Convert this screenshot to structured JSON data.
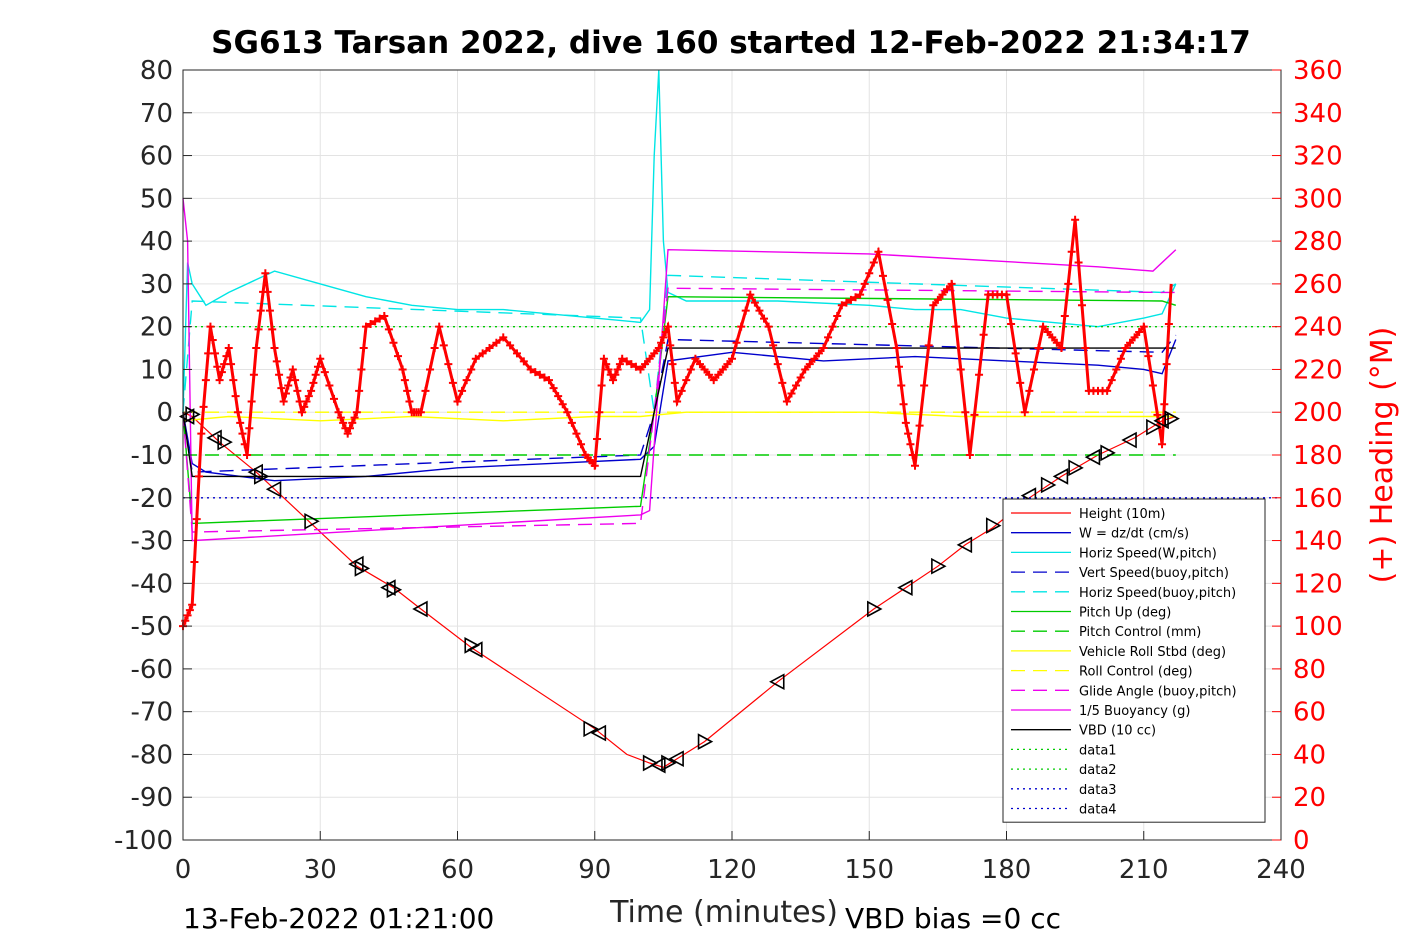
{
  "chart_data": {
    "type": "line",
    "title": "SG613 Tarsan 2022, dive 160 started 12-Feb-2022 21:34:17",
    "xlabel": "Time (minutes)",
    "ylabel_right": "(+) Heading (°M)",
    "footer_left": "13-Feb-2022 01:21:00",
    "footer_right": "VBD bias =0 cc",
    "xlim": [
      0,
      240
    ],
    "ylim": [
      -100,
      80
    ],
    "ylim_right": [
      0,
      360
    ],
    "x_ticks": [
      0,
      30,
      60,
      90,
      120,
      150,
      180,
      210,
      240
    ],
    "y_ticks": [
      80,
      70,
      60,
      50,
      40,
      30,
      20,
      10,
      0,
      -10,
      -20,
      -30,
      -40,
      -50,
      -60,
      -70,
      -80,
      -90,
      -100
    ],
    "y_ticks_right": [
      360,
      340,
      320,
      300,
      280,
      260,
      240,
      220,
      200,
      180,
      160,
      140,
      120,
      100,
      80,
      60,
      40,
      20,
      0
    ],
    "grid": true,
    "legend_position": "lower-right",
    "legend": [
      {
        "name": "Height (10m)",
        "color": "#ff0000",
        "dash": "solid"
      },
      {
        "name": "W = dz/dt (cm/s)",
        "color": "#0000cc",
        "dash": "solid"
      },
      {
        "name": "Horiz Speed(W,pitch)",
        "color": "#00e5e5",
        "dash": "solid"
      },
      {
        "name": "Vert Speed(buoy,pitch)",
        "color": "#0000cc",
        "dash": "dashed"
      },
      {
        "name": "Horiz Speed(buoy,pitch)",
        "color": "#00e5e5",
        "dash": "dashed"
      },
      {
        "name": "Pitch Up (deg)",
        "color": "#00cc00",
        "dash": "solid"
      },
      {
        "name": "Pitch Control (mm)",
        "color": "#00cc00",
        "dash": "dashed"
      },
      {
        "name": "Vehicle Roll Stbd (deg)",
        "color": "#ffff00",
        "dash": "solid"
      },
      {
        "name": "Roll Control (deg)",
        "color": "#ffff00",
        "dash": "dashed"
      },
      {
        "name": "Glide Angle (buoy,pitch)",
        "color": "#ee00ee",
        "dash": "dashed"
      },
      {
        "name": "1/5 Buoyancy (g)",
        "color": "#ee00ee",
        "dash": "solid"
      },
      {
        "name": "VBD (10 cc)",
        "color": "#000000",
        "dash": "solid"
      },
      {
        "name": "data1",
        "color": "#00cc00",
        "dash": "dotted"
      },
      {
        "name": "data2",
        "color": "#00cc00",
        "dash": "dotted"
      },
      {
        "name": "data3",
        "color": "#0000cc",
        "dash": "dotted"
      },
      {
        "name": "data4",
        "color": "#0000cc",
        "dash": "dotted"
      }
    ],
    "series": [
      {
        "key": "height",
        "x": [
          0,
          2,
          8,
          16,
          20,
          28,
          38,
          46,
          52,
          63,
          90,
          97,
          102,
          105,
          108,
          114,
          130,
          151,
          158,
          165,
          171,
          177,
          185,
          192,
          200,
          208,
          214,
          217
        ],
        "y": [
          0,
          -1,
          -7,
          -14,
          -18,
          -26,
          -36,
          -41,
          -46,
          -55,
          -74,
          -80,
          -82,
          -83,
          -81,
          -77,
          -63,
          -46,
          -41,
          -36,
          -31,
          -27,
          -20,
          -15,
          -10,
          -6,
          -2,
          -1
        ]
      },
      {
        "key": "w",
        "x": [
          0,
          2,
          5,
          20,
          40,
          60,
          80,
          100,
          103,
          106,
          120,
          140,
          160,
          180,
          200,
          210,
          214,
          217
        ],
        "y": [
          0,
          -12,
          -14,
          -16,
          -15,
          -13,
          -12,
          -11,
          -8,
          12,
          14,
          12,
          13,
          12,
          11,
          10,
          9,
          17
        ]
      },
      {
        "key": "horiz_w",
        "x": [
          0,
          1,
          2,
          5,
          10,
          20,
          30,
          40,
          50,
          60,
          70,
          80,
          90,
          100,
          102,
          103,
          104,
          105,
          106,
          110,
          130,
          150,
          160,
          170,
          180,
          190,
          200,
          210,
          214,
          217
        ],
        "y": [
          0,
          35,
          30,
          25,
          28,
          33,
          30,
          27,
          25,
          24,
          24,
          23,
          22,
          21,
          24,
          60,
          80,
          40,
          28,
          26,
          26,
          25,
          24,
          24,
          22,
          21,
          20,
          22,
          23,
          30
        ]
      },
      {
        "key": "vert_buoy",
        "x": [
          0,
          2,
          100,
          103,
          106,
          214,
          217
        ],
        "y": [
          0,
          -14,
          -10,
          0,
          17,
          14,
          18
        ]
      },
      {
        "key": "horiz_buoy",
        "x": [
          0,
          2,
          100,
          103,
          106,
          214,
          217
        ],
        "y": [
          0,
          26,
          22,
          0,
          32,
          28,
          30
        ]
      },
      {
        "key": "pitch_up",
        "x": [
          0,
          2,
          100,
          103,
          106,
          214,
          217
        ],
        "y": [
          0,
          -26,
          -22,
          0,
          27,
          26,
          25
        ]
      },
      {
        "key": "pitch_ctrl",
        "x": [
          0,
          217
        ],
        "y": [
          -10,
          -10
        ]
      },
      {
        "key": "roll",
        "x": [
          0,
          10,
          30,
          50,
          70,
          90,
          100,
          110,
          130,
          150,
          170,
          190,
          210,
          217
        ],
        "y": [
          -2,
          -1,
          -2,
          -1,
          -2,
          -1,
          -1,
          0,
          0,
          0,
          -1,
          -1,
          -1,
          -1
        ]
      },
      {
        "key": "roll_ctrl",
        "x": [
          0,
          217
        ],
        "y": [
          0,
          0
        ]
      },
      {
        "key": "glide",
        "x": [
          0,
          2,
          100,
          103,
          106,
          214,
          217
        ],
        "y": [
          0,
          -28,
          -26,
          0,
          29,
          28,
          28
        ]
      },
      {
        "key": "buoy",
        "x": [
          0,
          1,
          2,
          100,
          102,
          106,
          150,
          200,
          212,
          217
        ],
        "y": [
          50,
          40,
          -30,
          -24,
          -23,
          38,
          37,
          34,
          33,
          38
        ]
      },
      {
        "key": "vbd",
        "x": [
          0,
          2,
          100,
          103,
          106,
          214,
          217
        ],
        "y": [
          0,
          -15,
          -15,
          0,
          15,
          15,
          15
        ]
      },
      {
        "key": "data1",
        "x": [
          0,
          240
        ],
        "y": [
          20,
          20
        ]
      },
      {
        "key": "data3",
        "x": [
          0,
          240
        ],
        "y": [
          -20,
          -20
        ]
      },
      {
        "key": "heading",
        "axis": "right",
        "x": [
          0,
          2,
          4,
          6,
          8,
          10,
          12,
          14,
          16,
          18,
          20,
          22,
          24,
          26,
          28,
          30,
          34,
          36,
          38,
          40,
          44,
          48,
          50,
          52,
          56,
          60,
          64,
          70,
          76,
          80,
          84,
          88,
          90,
          92,
          94,
          96,
          100,
          104,
          106,
          108,
          112,
          116,
          120,
          124,
          128,
          132,
          136,
          140,
          144,
          148,
          152,
          156,
          158,
          160,
          164,
          168,
          172,
          176,
          180,
          184,
          188,
          192,
          195,
          198,
          202,
          206,
          210,
          214,
          216
        ],
        "y": [
          100,
          110,
          190,
          240,
          215,
          230,
          200,
          180,
          230,
          265,
          230,
          205,
          220,
          200,
          210,
          225,
          200,
          190,
          200,
          240,
          245,
          220,
          200,
          200,
          240,
          205,
          225,
          235,
          220,
          215,
          200,
          180,
          175,
          225,
          215,
          225,
          220,
          230,
          240,
          205,
          225,
          215,
          225,
          255,
          240,
          205,
          220,
          230,
          250,
          255,
          275,
          230,
          195,
          175,
          250,
          260,
          180,
          255,
          255,
          200,
          240,
          230,
          290,
          210,
          210,
          230,
          240,
          185,
          260
        ]
      },
      {
        "key": "markers",
        "x": [
          1,
          2,
          7,
          9,
          16,
          17,
          20,
          28,
          38,
          39,
          45,
          46,
          52,
          63,
          64,
          89,
          91,
          102,
          104,
          106,
          108,
          114,
          130,
          151,
          158,
          165,
          171,
          177,
          185,
          189,
          192,
          195,
          199,
          202,
          207,
          212,
          214,
          216
        ],
        "y": [
          -1,
          -0.5,
          -6,
          -7,
          -14,
          -15,
          -18,
          -25.5,
          -35.5,
          -36.5,
          -41,
          -41.5,
          -46,
          -54.5,
          -55.5,
          -74,
          -75,
          -82,
          -82.5,
          -82,
          -81,
          -77,
          -63,
          -46,
          -41,
          -36,
          -31,
          -26.5,
          -19.5,
          -17,
          -15,
          -13,
          -10.5,
          -9.5,
          -6.5,
          -3.5,
          -2,
          -1.5
        ]
      }
    ]
  }
}
